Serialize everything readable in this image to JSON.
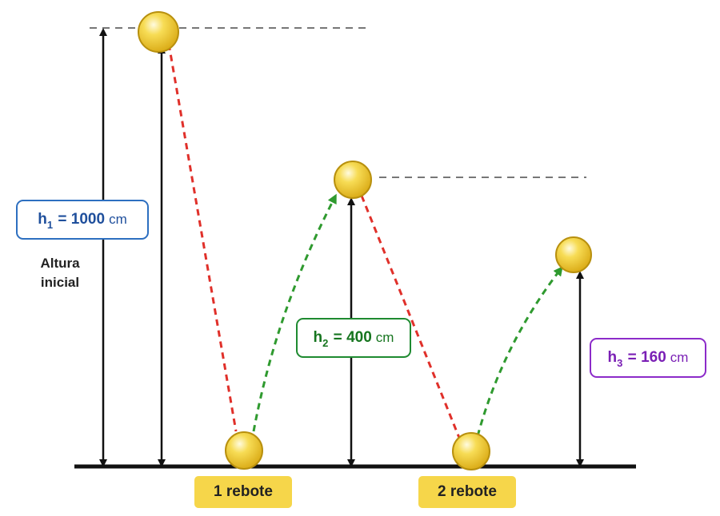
{
  "figure": {
    "initial_height_caption": [
      "Altura",
      "inicial"
    ],
    "heights": [
      {
        "symbol": "h",
        "subscript": "1",
        "equals": "=",
        "value": "1000",
        "unit": "cm",
        "color": "#2d6fc0"
      },
      {
        "symbol": "h",
        "subscript": "2",
        "equals": "=",
        "value": "400",
        "unit": "cm",
        "color": "#1e8a30"
      },
      {
        "symbol": "h",
        "subscript": "3",
        "equals": "=",
        "value": "160",
        "unit": "cm",
        "color": "#8c2bc9"
      }
    ],
    "bounce_labels": [
      "1 rebote",
      "2 rebote"
    ],
    "colors": {
      "ball_fill": "#f2cc2e",
      "ball_stroke": "#b8900e",
      "fall_path": "#e0302a",
      "rise_path": "#2f9a2f",
      "reference_line": "#777777",
      "ground": "#111111",
      "tag_fill": "#f6d64a"
    }
  }
}
